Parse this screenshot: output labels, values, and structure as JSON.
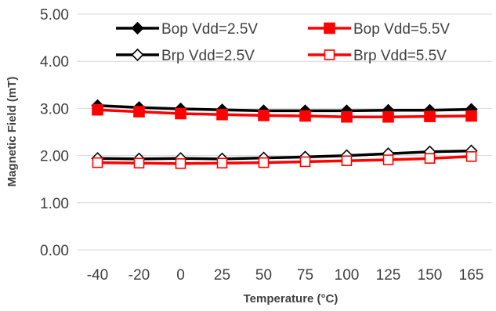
{
  "chart_data": {
    "type": "line",
    "xlabel": "Temperature   (°C)",
    "ylabel": "Magnetic Field (mT)",
    "categories": [
      "-40",
      "-20",
      "0",
      "25",
      "50",
      "75",
      "100",
      "125",
      "150",
      "165"
    ],
    "ylim": [
      0,
      5
    ],
    "yticks": [
      "0.00",
      "1.00",
      "2.00",
      "3.00",
      "4.00",
      "5.00"
    ],
    "grid": "horizontal",
    "legend_position": "top",
    "series": [
      {
        "name": "Bop Vdd=2.5V",
        "color": "#000000",
        "marker": "diamond-filled",
        "values": [
          3.06,
          3.02,
          2.99,
          2.97,
          2.95,
          2.95,
          2.95,
          2.96,
          2.96,
          2.98
        ]
      },
      {
        "name": "Bop Vdd=5.5V",
        "color": "#ff0000",
        "marker": "square-filled",
        "values": [
          2.97,
          2.93,
          2.89,
          2.87,
          2.85,
          2.84,
          2.82,
          2.82,
          2.83,
          2.84
        ]
      },
      {
        "name": "Brp Vdd=2.5V",
        "color": "#000000",
        "marker": "diamond-open",
        "values": [
          1.94,
          1.93,
          1.94,
          1.93,
          1.95,
          1.97,
          2.0,
          2.04,
          2.08,
          2.1
        ]
      },
      {
        "name": "Brp Vdd=5.5V",
        "color": "#ff0000",
        "marker": "square-open",
        "values": [
          1.85,
          1.84,
          1.83,
          1.84,
          1.85,
          1.87,
          1.89,
          1.91,
          1.94,
          1.98
        ]
      }
    ]
  }
}
